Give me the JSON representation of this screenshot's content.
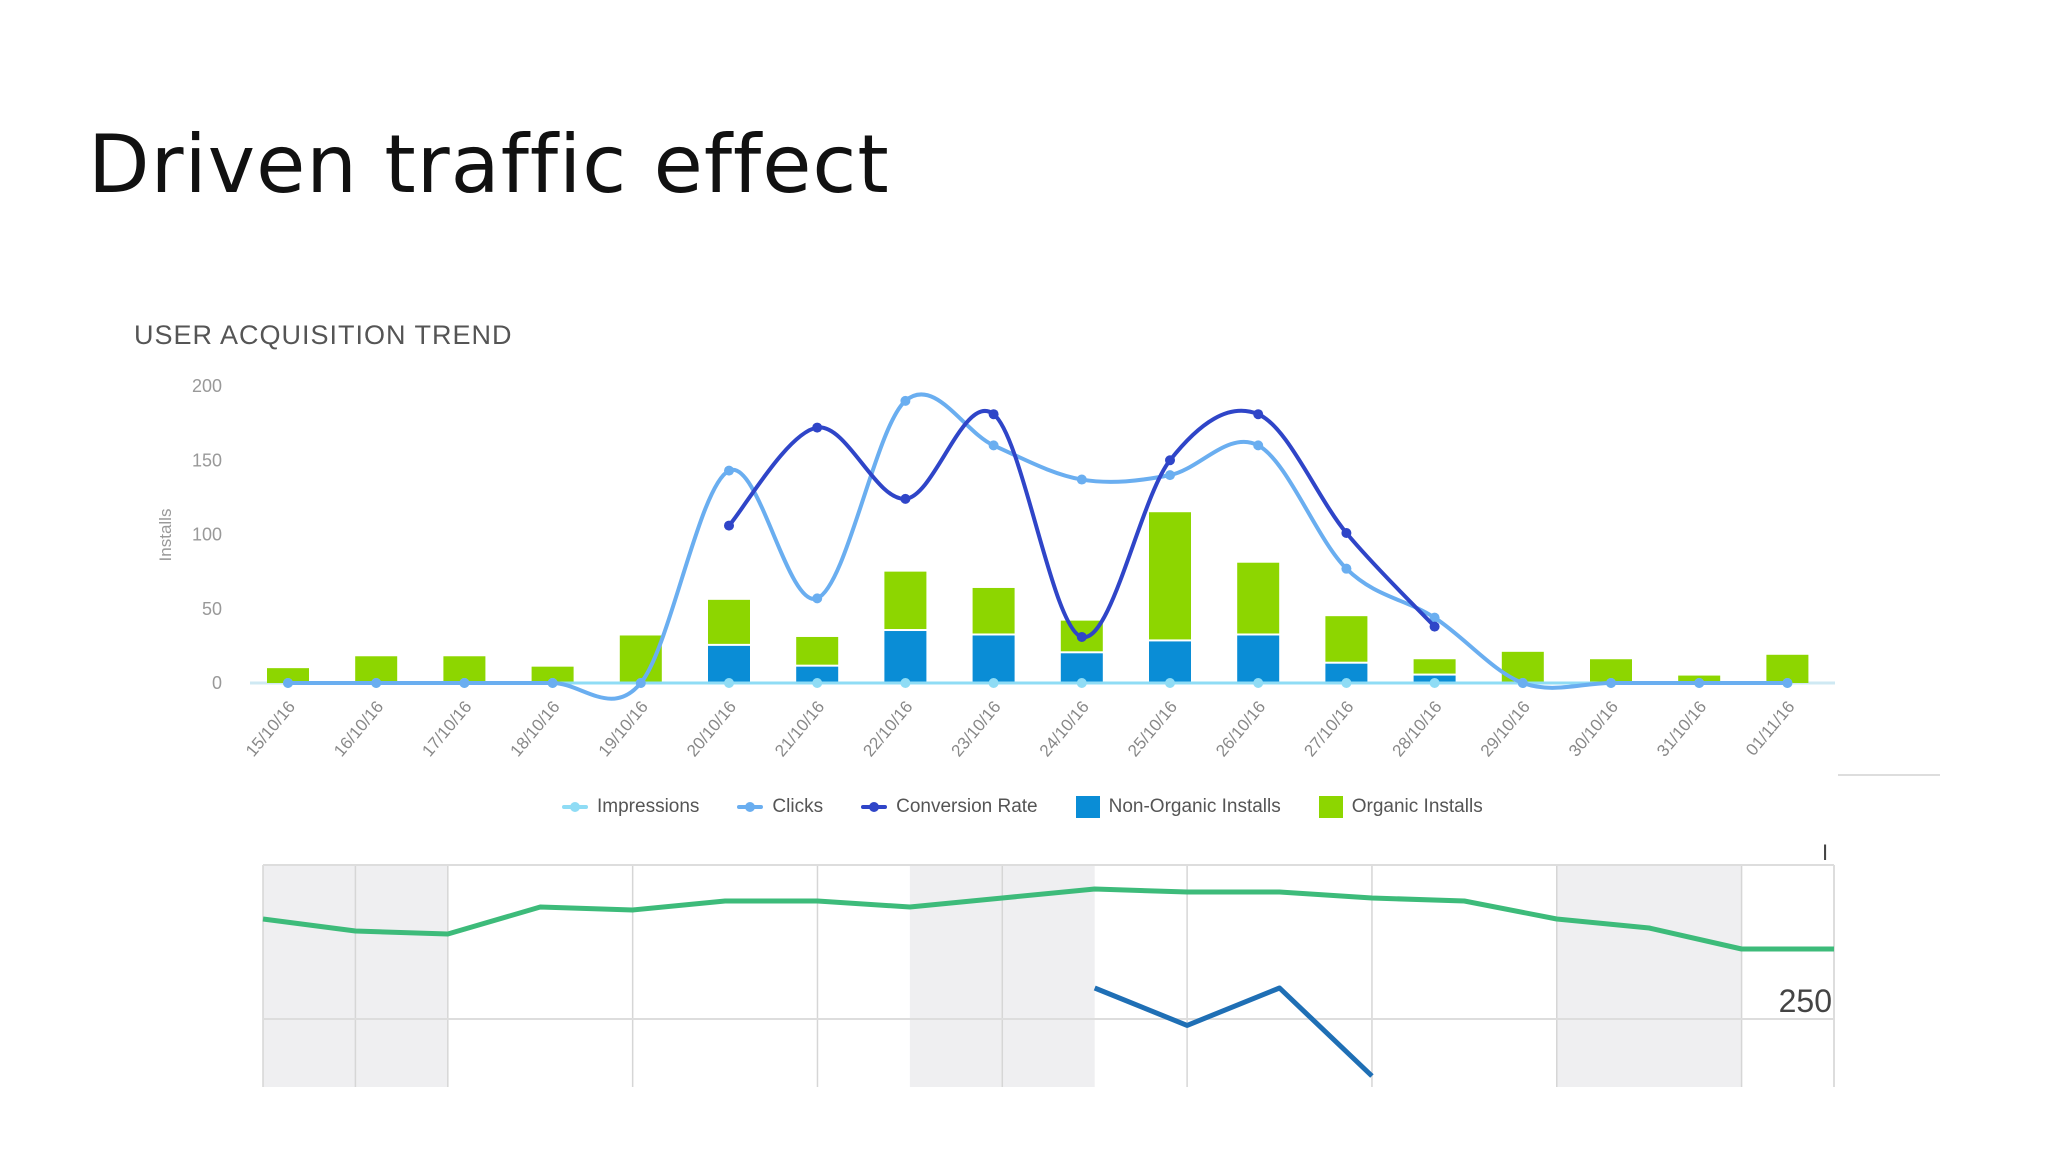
{
  "slide": {
    "title": "Driven traffic effect"
  },
  "chart_data": [
    {
      "type": "bar+line",
      "title": "USER ACQUISITION TREND",
      "xlabel": "",
      "ylabel": "Installs",
      "ylim": [
        0,
        200
      ],
      "yticks": [
        0,
        50,
        100,
        150,
        200
      ],
      "grid": false,
      "legend_position": "bottom",
      "categories": [
        "15/10/16",
        "16/10/16",
        "17/10/16",
        "18/10/16",
        "19/10/16",
        "20/10/16",
        "21/10/16",
        "22/10/16",
        "23/10/16",
        "24/10/16",
        "25/10/16",
        "26/10/16",
        "27/10/16",
        "28/10/16",
        "29/10/16",
        "30/10/16",
        "31/10/16",
        "01/11/16"
      ],
      "series": [
        {
          "name": "Impressions",
          "kind": "line",
          "color": "#8fdcf5",
          "values": [
            0,
            0,
            0,
            0,
            0,
            0,
            0,
            0,
            0,
            0,
            0,
            0,
            0,
            0,
            0,
            0,
            0,
            0
          ]
        },
        {
          "name": "Clicks",
          "kind": "line",
          "color": "#6aaef0",
          "values": [
            0,
            0,
            0,
            0,
            0,
            143,
            57,
            190,
            160,
            137,
            140,
            160,
            77,
            44,
            0,
            0,
            0,
            0
          ]
        },
        {
          "name": "Conversion Rate",
          "kind": "line",
          "color": "#2f45c8",
          "values": [
            null,
            null,
            null,
            null,
            null,
            106,
            172,
            124,
            181,
            31,
            150,
            181,
            101,
            38,
            null,
            null,
            null,
            null
          ]
        },
        {
          "name": "Non-Organic Installs",
          "kind": "bar",
          "stack": "installs",
          "color": "#0a8dd6",
          "values": [
            0,
            0,
            0,
            0,
            0,
            25,
            11,
            35,
            32,
            20,
            28,
            32,
            13,
            5,
            0,
            0,
            0,
            0
          ]
        },
        {
          "name": "Organic Installs",
          "kind": "bar",
          "stack": "installs",
          "color": "#8dd600",
          "values": [
            10,
            18,
            18,
            11,
            32,
            31,
            20,
            40,
            32,
            22,
            87,
            49,
            32,
            11,
            21,
            16,
            5,
            19
          ]
        }
      ]
    },
    {
      "type": "line",
      "title": "",
      "partial": true,
      "ytick_visible": "250",
      "series": [
        {
          "name": "green-series",
          "color": "#3dbb7a",
          "values": [
            0.82,
            0.78,
            0.77,
            0.86,
            0.85,
            0.88,
            0.88,
            0.86,
            0.89,
            0.92,
            0.91,
            0.91,
            0.89,
            0.88,
            0.82,
            0.79,
            0.72,
            0.72
          ]
        },
        {
          "name": "blue-series",
          "color": "#1f6fb5",
          "values": [
            null,
            null,
            null,
            null,
            null,
            null,
            null,
            null,
            null,
            0.45,
            0.28,
            0.45,
            0.05,
            null,
            null,
            null,
            null,
            null
          ]
        }
      ]
    }
  ],
  "legend": [
    {
      "label": "Impressions",
      "kind": "line",
      "color": "#8fdcf5"
    },
    {
      "label": "Clicks",
      "kind": "line",
      "color": "#6aaef0"
    },
    {
      "label": "Conversion Rate",
      "kind": "line",
      "color": "#2f45c8"
    },
    {
      "label": "Non-Organic Installs",
      "kind": "box",
      "color": "#0a8dd6"
    },
    {
      "label": "Organic Installs",
      "kind": "box",
      "color": "#8dd600"
    }
  ],
  "bottom": {
    "ytick": "250",
    "marker": "I"
  }
}
